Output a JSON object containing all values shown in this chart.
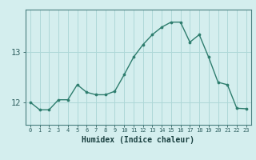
{
  "x": [
    0,
    1,
    2,
    3,
    4,
    5,
    6,
    7,
    8,
    9,
    10,
    11,
    12,
    13,
    14,
    15,
    16,
    17,
    18,
    19,
    20,
    21,
    22,
    23
  ],
  "y": [
    12.0,
    11.85,
    11.85,
    12.05,
    12.05,
    12.35,
    12.2,
    12.15,
    12.15,
    12.22,
    12.55,
    12.9,
    13.15,
    13.35,
    13.5,
    13.6,
    13.6,
    13.2,
    13.35,
    12.9,
    12.4,
    12.35,
    11.88,
    11.87
  ],
  "line_color": "#2e7d6e",
  "marker_color": "#2e7d6e",
  "bg_color": "#d4eeee",
  "grid_color": "#aed8d8",
  "xlabel": "Humidex (Indice chaleur)",
  "yticks": [
    12,
    13
  ],
  "ylim": [
    11.55,
    13.85
  ],
  "xlim": [
    -0.5,
    23.5
  ]
}
